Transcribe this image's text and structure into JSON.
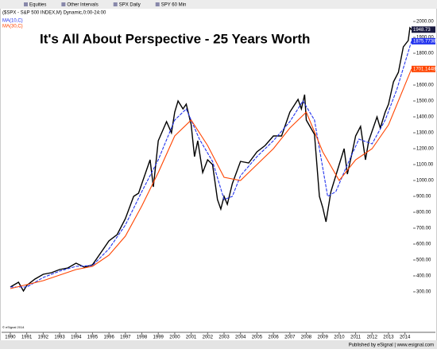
{
  "toolbar": {
    "items": [
      "Equities",
      "Other Intervals",
      "SPX Daily",
      "SPY 60 Min"
    ]
  },
  "header": "($SPX - S&P 500 INDEX,M) Dynamic,0:00-24:00",
  "copyright": "© eSignal 2014",
  "footer": "Published by eSignal | www.esignal.com",
  "chart_data": {
    "type": "line",
    "title": "It's All About Perspective - 25 Years Worth",
    "xlim": [
      1989.47,
      2014.5
    ],
    "xticks": [
      1990,
      1991,
      1992,
      1993,
      1994,
      1995,
      1996,
      1997,
      1998,
      1999,
      2000,
      2001,
      2002,
      2003,
      2004,
      2005,
      2006,
      2007,
      2008,
      2009,
      2010,
      2011,
      2012,
      2013,
      2014
    ],
    "ylim": [
      70,
      2050
    ],
    "yticks": [
      {
        "value": 300,
        "label": "300.00"
      },
      {
        "value": 400,
        "label": "400.00"
      },
      {
        "value": 500,
        "label": "500.00"
      },
      {
        "value": 600,
        "label": "600.00"
      },
      {
        "value": 700,
        "label": "700.00"
      },
      {
        "value": 800,
        "label": "800.00"
      },
      {
        "value": 900,
        "label": "900.00"
      },
      {
        "value": 1000,
        "label": "1000.00"
      },
      {
        "value": 1100,
        "label": "1100.00"
      },
      {
        "value": 1200,
        "label": "1200.00"
      },
      {
        "value": 1300,
        "label": "1300.00"
      },
      {
        "value": 1400,
        "label": "1400.00"
      },
      {
        "value": 1500,
        "label": "1500.00"
      },
      {
        "value": 1600,
        "label": "1600.00"
      },
      {
        "value": 1700,
        "label": "1700.00"
      },
      {
        "value": 1800,
        "label": "1800.00"
      },
      {
        "value": 1900,
        "label": "1900.00"
      },
      {
        "value": 2000,
        "label": "2000.00"
      }
    ],
    "series": [
      {
        "name": "$SPX",
        "color": "#000000",
        "x": [
          1990.0,
          1990.5,
          1990.8,
          1991.0,
          1991.5,
          1992.0,
          1992.5,
          1993.0,
          1993.5,
          1994.0,
          1994.5,
          1995.0,
          1995.5,
          1996.0,
          1996.5,
          1997.0,
          1997.5,
          1997.8,
          1998.0,
          1998.5,
          1998.7,
          1999.0,
          1999.5,
          1999.8,
          2000.0,
          2000.2,
          2000.5,
          2000.7,
          2001.0,
          2001.2,
          2001.4,
          2001.7,
          2002.0,
          2002.3,
          2002.6,
          2002.8,
          2003.0,
          2003.2,
          2003.5,
          2004.0,
          2004.5,
          2005.0,
          2005.5,
          2006.0,
          2006.5,
          2007.0,
          2007.5,
          2007.7,
          2007.9,
          2008.0,
          2008.5,
          2008.8,
          2009.0,
          2009.2,
          2009.5,
          2010.0,
          2010.3,
          2010.5,
          2010.8,
          2011.0,
          2011.3,
          2011.6,
          2011.8,
          2012.0,
          2012.3,
          2012.5,
          2012.8,
          2013.0,
          2013.3,
          2013.6,
          2013.9,
          2014.2,
          2014.3,
          2014.4
        ],
        "values": [
          330,
          360,
          305,
          340,
          380,
          410,
          420,
          440,
          450,
          480,
          455,
          470,
          545,
          620,
          660,
          760,
          900,
          920,
          980,
          1130,
          960,
          1250,
          1370,
          1300,
          1430,
          1500,
          1450,
          1480,
          1350,
          1150,
          1250,
          1050,
          1130,
          1100,
          880,
          820,
          900,
          850,
          980,
          1120,
          1110,
          1180,
          1220,
          1280,
          1280,
          1430,
          1510,
          1450,
          1540,
          1380,
          1290,
          900,
          830,
          740,
          930,
          1100,
          1200,
          1040,
          1180,
          1280,
          1340,
          1130,
          1250,
          1310,
          1400,
          1330,
          1430,
          1480,
          1620,
          1680,
          1840,
          1880,
          1960,
          1948.73
        ]
      },
      {
        "name": "MA(10,C)",
        "color": "#2233ee",
        "x": [
          1990.0,
          1991.0,
          1992.0,
          1993.0,
          1994.0,
          1995.0,
          1996.0,
          1997.0,
          1998.0,
          1999.0,
          2000.0,
          2000.7,
          2001.5,
          2002.3,
          2003.0,
          2003.5,
          2004.0,
          2005.0,
          2006.0,
          2007.0,
          2007.8,
          2008.5,
          2009.3,
          2009.8,
          2010.5,
          2011.2,
          2012.0,
          2012.8,
          2013.5,
          2014.4
        ],
        "values": [
          330,
          330,
          390,
          430,
          460,
          465,
          570,
          720,
          930,
          1130,
          1380,
          1450,
          1260,
          1120,
          880,
          900,
          1030,
          1150,
          1250,
          1370,
          1500,
          1380,
          900,
          930,
          1100,
          1260,
          1230,
          1380,
          1570,
          1875.77383
        ]
      },
      {
        "name": "MA(30,C)",
        "color": "#ff4400",
        "x": [
          1990.0,
          1992.0,
          1994.0,
          1995.0,
          1996.0,
          1997.0,
          1998.0,
          1999.0,
          2000.0,
          2001.0,
          2002.0,
          2003.0,
          2004.0,
          2005.0,
          2006.0,
          2007.0,
          2008.0,
          2009.0,
          2010.0,
          2011.0,
          2012.0,
          2013.0,
          2014.4
        ],
        "values": [
          320,
          370,
          440,
          460,
          530,
          650,
          840,
          1050,
          1280,
          1380,
          1220,
          1020,
          1000,
          1100,
          1200,
          1330,
          1430,
          1180,
          1000,
          1130,
          1200,
          1350,
          1701.14488
        ]
      }
    ]
  }
}
